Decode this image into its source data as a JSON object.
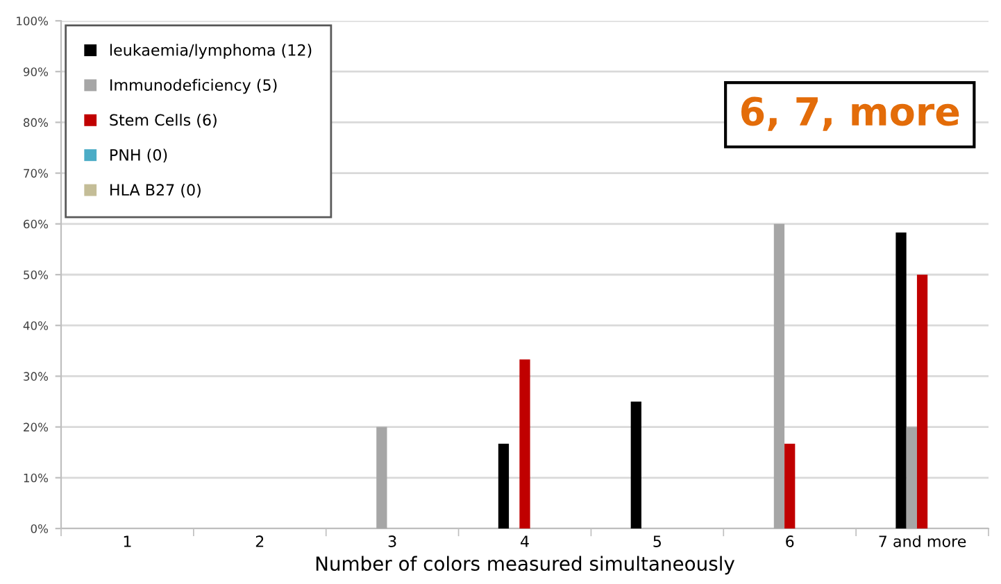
{
  "chart_data": {
    "type": "bar",
    "xlabel": "Number of colors measured simultaneously",
    "categories": [
      "1",
      "2",
      "3",
      "4",
      "5",
      "6",
      "7 and more"
    ],
    "series": [
      {
        "name": "leukaemia/lymphoma (12)",
        "color": "#000000",
        "values": [
          0,
          0,
          0,
          16.7,
          25,
          0,
          58.3
        ]
      },
      {
        "name": "Immunodeficiency (5)",
        "color": "#a6a6a6",
        "values": [
          0,
          0,
          20,
          0,
          0,
          60,
          20
        ]
      },
      {
        "name": "Stem Cells (6)",
        "color": "#c00000",
        "values": [
          0,
          0,
          0,
          33.3,
          0,
          16.7,
          50
        ]
      },
      {
        "name": "PNH (0)",
        "color": "#4bacc6",
        "values": [
          0,
          0,
          0,
          0,
          0,
          0,
          0
        ]
      },
      {
        "name": "HLA B27 (0)",
        "color": "#c4bd97",
        "values": [
          0,
          0,
          0,
          0,
          0,
          0,
          0
        ]
      }
    ],
    "ylim": [
      0,
      100
    ],
    "yticks": [
      {
        "value": 0,
        "label": "0%"
      },
      {
        "value": 10,
        "label": "10%"
      },
      {
        "value": 20,
        "label": "20%"
      },
      {
        "value": 30,
        "label": "30%"
      },
      {
        "value": 40,
        "label": "40%"
      },
      {
        "value": 50,
        "label": "50%"
      },
      {
        "value": 60,
        "label": "60%"
      },
      {
        "value": 70,
        "label": "70%"
      },
      {
        "value": 80,
        "label": "80%"
      },
      {
        "value": 90,
        "label": "90%"
      },
      {
        "value": 100,
        "label": "100%"
      }
    ],
    "grid": "y",
    "legend": "top left",
    "annotations": [
      "6, 7, more"
    ]
  }
}
